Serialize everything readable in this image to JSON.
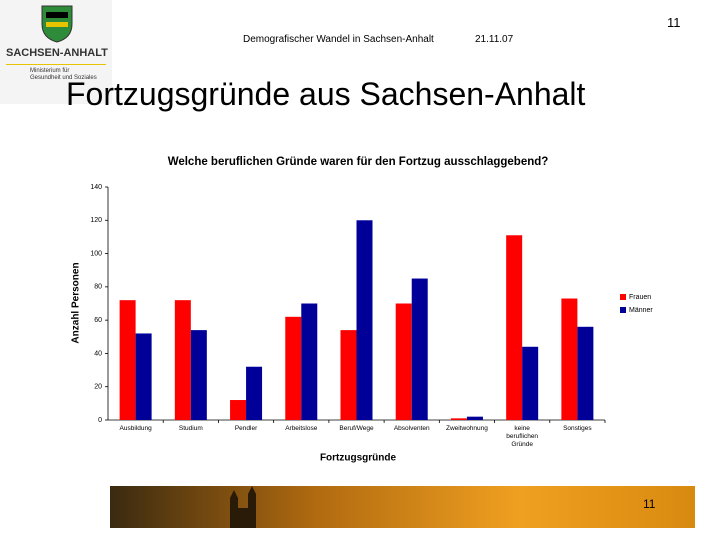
{
  "slide": {
    "page_number": "11",
    "header": "Demografischer Wandel in Sachsen-Anhalt",
    "date": "21.11.07",
    "title": "Fortzugsgründe aus Sachsen-Anhalt",
    "logo": {
      "name": "SACHSEN-ANHALT",
      "line1": "Ministerium für",
      "line2": "Gesundheit und Soziales"
    }
  },
  "chart_data": {
    "type": "bar",
    "title": "Welche beruflichen Gründe waren für den Fortzug ausschlaggebend?",
    "x_label": "Fortzugsgründe",
    "y_label": "Anzahl Personen",
    "categories": [
      "Ausbildung",
      "Studium",
      "Pendler",
      "Arbeitslose",
      "Beruf/Wege",
      "Absolventen",
      "Zweitwohnung",
      "keine beruflichen Gründe",
      "Sonstiges"
    ],
    "series": [
      {
        "name": "Frauen",
        "color": "#ff0000",
        "values": [
          72,
          72,
          12,
          62,
          54,
          70,
          1,
          111,
          73
        ]
      },
      {
        "name": "Männer",
        "color": "#000099",
        "values": [
          52,
          54,
          32,
          70,
          120,
          85,
          2,
          44,
          56
        ]
      }
    ],
    "ylim": [
      0,
      140
    ],
    "yticks": [
      0,
      20,
      40,
      60,
      80,
      100,
      120,
      140
    ],
    "grid": false,
    "legend": "right"
  }
}
